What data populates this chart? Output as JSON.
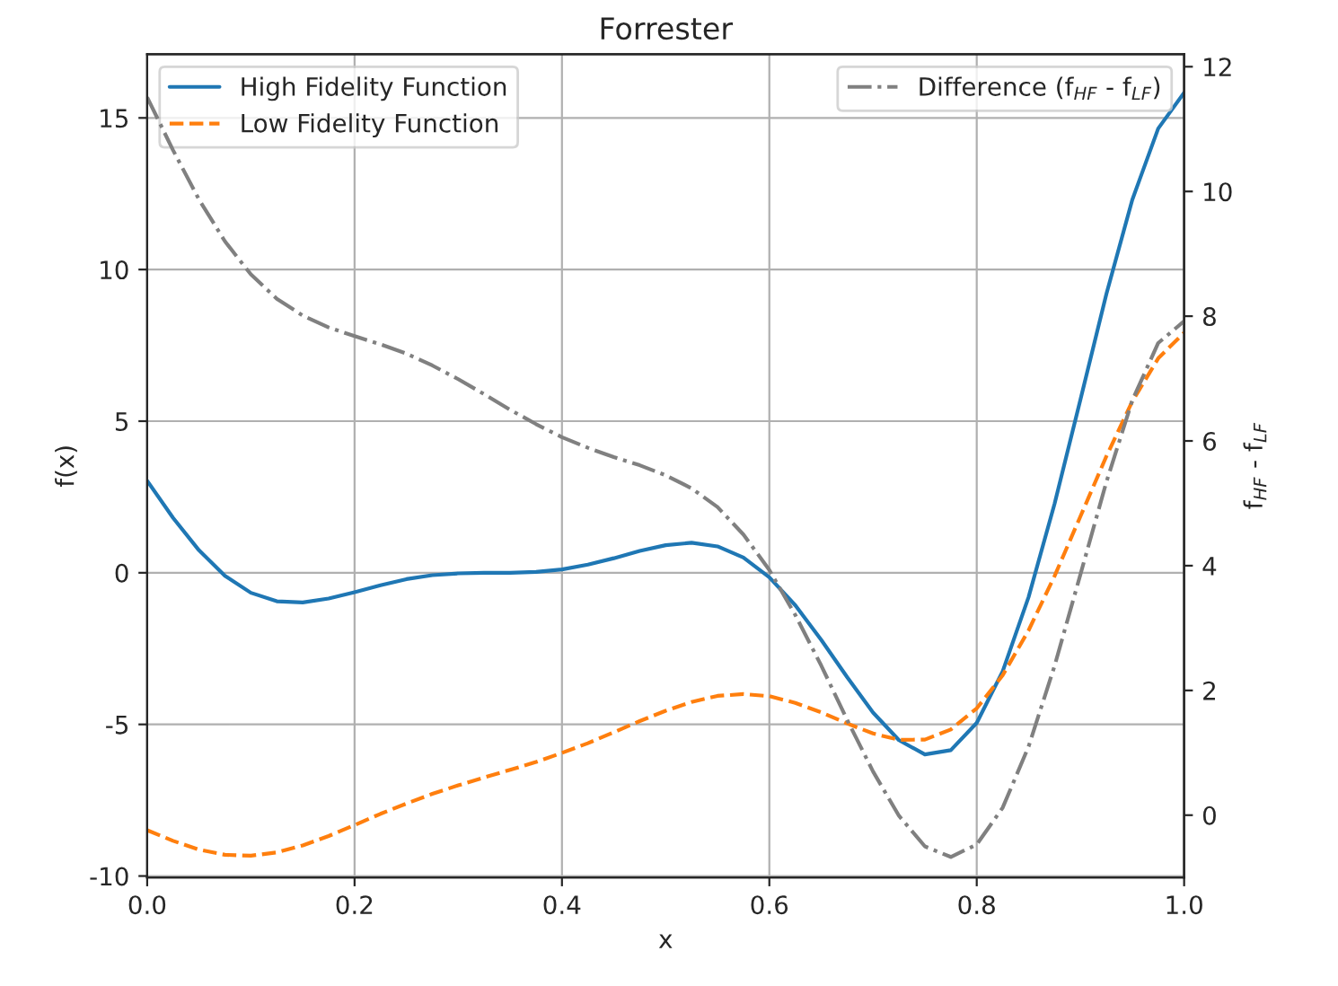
{
  "chart_data": {
    "type": "line",
    "title": "Forrester",
    "xlabel": "x",
    "ylabel": "f(x)",
    "y2label": "f$_{HF}$ - f$_{LF}$",
    "x": [
      0,
      0.025,
      0.05,
      0.075,
      0.1,
      0.125,
      0.15,
      0.175,
      0.2,
      0.225,
      0.25,
      0.275,
      0.3,
      0.325,
      0.35,
      0.375,
      0.4,
      0.425,
      0.45,
      0.475,
      0.5,
      0.525,
      0.55,
      0.575,
      0.6,
      0.625,
      0.65,
      0.675,
      0.7,
      0.725,
      0.75,
      0.775,
      0.8,
      0.825,
      0.85,
      0.875,
      0.9,
      0.925,
      0.95,
      0.975,
      1
    ],
    "series": [
      {
        "name": "High Fidelity Function",
        "color": "#1f77b4",
        "line_style": "solid",
        "values": [
          3.03,
          1.81,
          0.74,
          -0.1,
          -0.66,
          -0.94,
          -0.98,
          -0.85,
          -0.64,
          -0.41,
          -0.21,
          -0.08,
          -0.02,
          0.0,
          0.0,
          0.03,
          0.11,
          0.27,
          0.48,
          0.72,
          0.91,
          0.99,
          0.87,
          0.5,
          -0.15,
          -1.07,
          -2.21,
          -3.44,
          -4.61,
          -5.52,
          -5.99,
          -5.85,
          -4.95,
          -3.25,
          -0.8,
          2.27,
          5.71,
          9.19,
          12.3,
          14.65,
          15.83
        ]
      },
      {
        "name": "Low Fidelity Function",
        "color": "#ff7f0e",
        "line_style": "dashed",
        "values": [
          -8.49,
          -8.84,
          -9.13,
          -9.3,
          -9.33,
          -9.22,
          -8.99,
          -8.68,
          -8.32,
          -7.95,
          -7.61,
          -7.29,
          -7.01,
          -6.75,
          -6.5,
          -6.24,
          -5.94,
          -5.62,
          -5.26,
          -4.89,
          -4.55,
          -4.26,
          -4.06,
          -4.0,
          -4.07,
          -4.29,
          -4.6,
          -4.97,
          -5.3,
          -5.51,
          -5.5,
          -5.17,
          -4.47,
          -3.38,
          -1.9,
          -0.11,
          1.86,
          3.84,
          5.65,
          7.07,
          7.92
        ]
      },
      {
        "name": "Difference (f$_{HF}$ - f$_{LF}$)",
        "color": "#808080",
        "line_style": "dashdot",
        "axis": "y2",
        "values": [
          11.51,
          10.66,
          9.87,
          9.2,
          8.67,
          8.28,
          8.01,
          7.82,
          7.68,
          7.55,
          7.4,
          7.21,
          6.99,
          6.75,
          6.5,
          6.27,
          6.06,
          5.89,
          5.74,
          5.61,
          5.45,
          5.24,
          4.94,
          4.5,
          3.93,
          3.21,
          2.4,
          1.53,
          0.7,
          -0.01,
          -0.5,
          -0.67,
          -0.47,
          0.12,
          1.1,
          2.39,
          3.86,
          5.34,
          6.65,
          7.57,
          7.92
        ]
      }
    ],
    "xlim": [
      0,
      1
    ],
    "xticks": [
      {
        "value": 0,
        "label": "0.0"
      },
      {
        "value": 0.2,
        "label": "0.2"
      },
      {
        "value": 0.4,
        "label": "0.4"
      },
      {
        "value": 0.6,
        "label": "0.6"
      },
      {
        "value": 0.8,
        "label": "0.8"
      },
      {
        "value": 1,
        "label": "1.0"
      }
    ],
    "ylim": [
      -10.05,
      17.1
    ],
    "yticks": [
      -10,
      -5,
      0,
      5,
      10,
      15
    ],
    "y2lim": [
      -1.0,
      12.2
    ],
    "y2ticks": [
      0,
      2,
      4,
      6,
      8,
      10,
      12
    ],
    "grid": true,
    "legend": "top left"
  }
}
